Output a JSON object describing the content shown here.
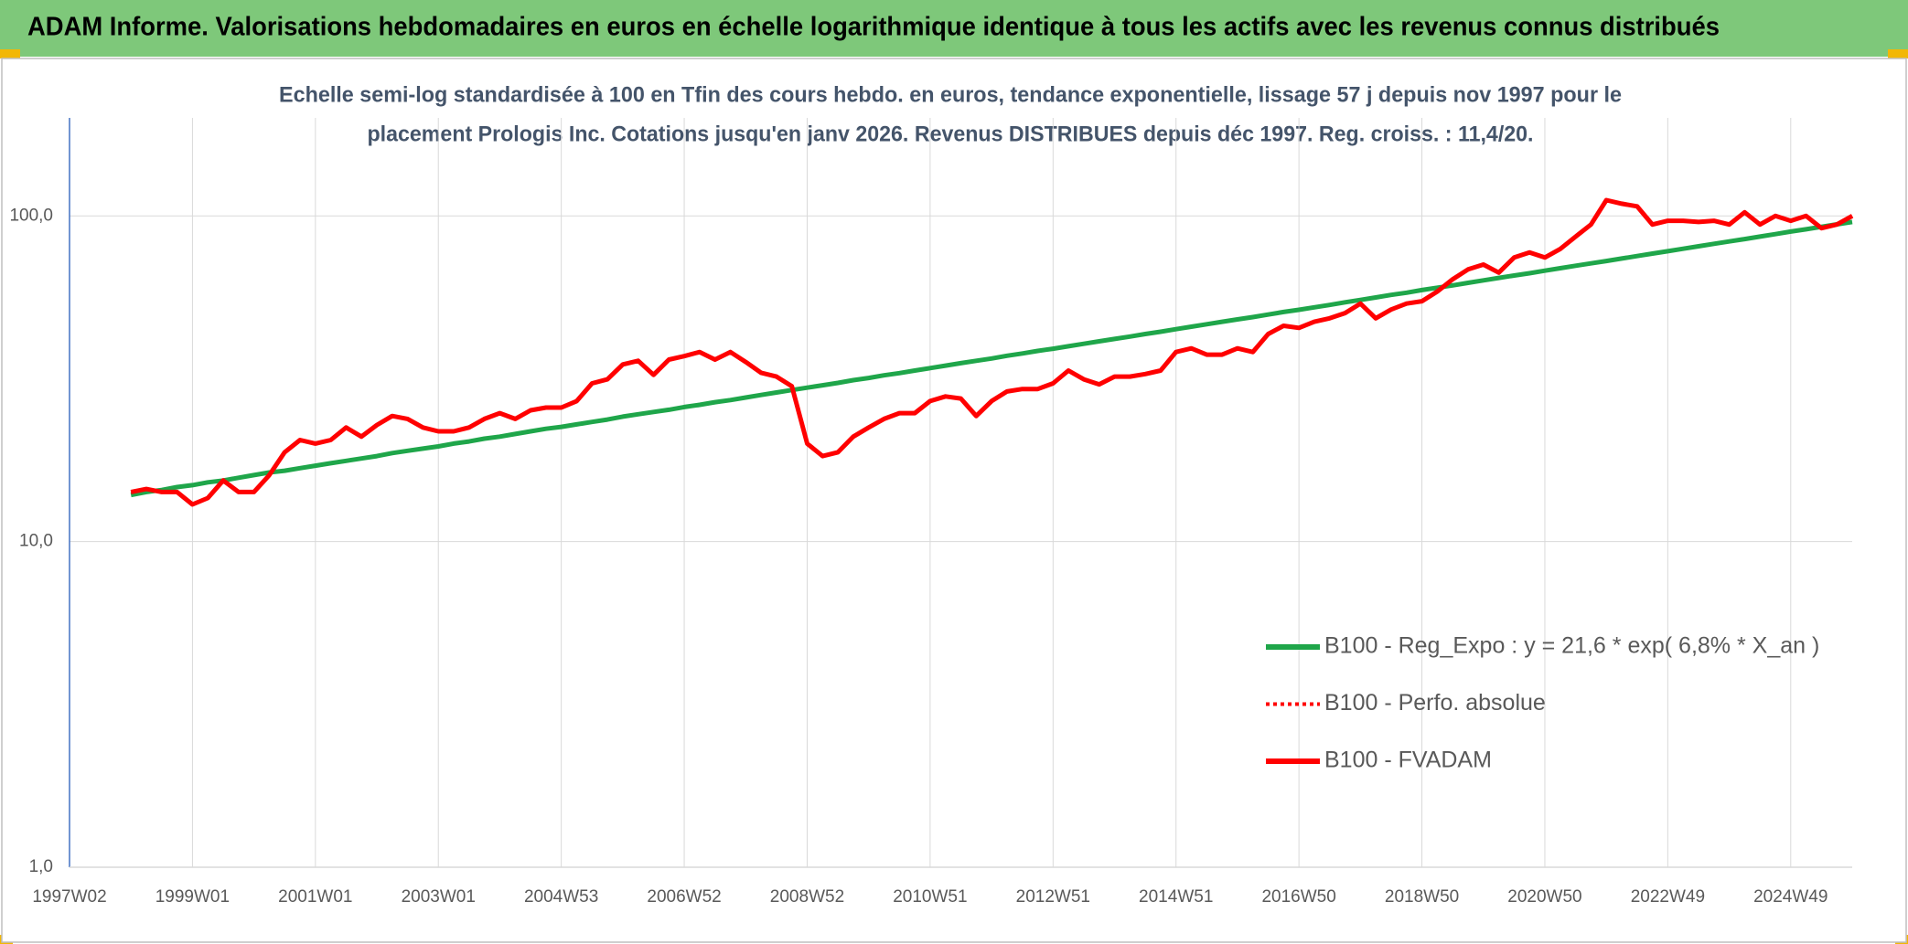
{
  "chart_data": {
    "type": "line",
    "title": "ADAM Informe. Valorisations hebdomadaires en euros en échelle logarithmique identique à tous les actifs avec les revenus connus distribués",
    "subtitle": [
      "Echelle semi-log standardisée à 100 en Tfin des cours hebdo. en euros, tendance exponentielle, lissage 57 j depuis nov 1997 pour le",
      "placement Prologis Inc. Cotations jusqu'en janv 2026. Revenus DISTRIBUES depuis déc 1997. Reg. croiss. : 11,4/20."
    ],
    "categories": [
      "1997W02",
      null,
      null,
      null,
      null,
      null,
      null,
      null,
      "1999W01",
      null,
      null,
      null,
      null,
      null,
      null,
      null,
      "2001W01",
      null,
      null,
      null,
      null,
      null,
      null,
      null,
      "2003W01",
      null,
      null,
      null,
      null,
      null,
      null,
      null,
      "2004W53",
      null,
      null,
      null,
      null,
      null,
      null,
      null,
      "2006W52",
      null,
      null,
      null,
      null,
      null,
      null,
      null,
      "2008W52",
      null,
      null,
      null,
      null,
      null,
      null,
      null,
      "2010W51",
      null,
      null,
      null,
      null,
      null,
      null,
      null,
      "2012W51",
      null,
      null,
      null,
      null,
      null,
      null,
      null,
      "2014W51",
      null,
      null,
      null,
      null,
      null,
      null,
      null,
      "2016W50",
      null,
      null,
      null,
      null,
      null,
      null,
      null,
      "2018W50",
      null,
      null,
      null,
      null,
      null,
      null,
      null,
      "2020W50",
      null,
      null,
      null,
      null,
      null,
      null,
      null,
      "2022W49",
      null,
      null,
      null,
      null,
      null,
      null,
      null,
      "2024W49",
      null,
      null,
      null,
      null
    ],
    "series": [
      {
        "name": "B100 - Reg_Expo : y = 21,6 * exp( 6,8% *  X_an )",
        "color": "#1fa64a",
        "style": "solid",
        "values": [
          null,
          null,
          null,
          null,
          13.9,
          14.2,
          14.4,
          14.7,
          14.9,
          15.2,
          15.4,
          15.7,
          16.0,
          16.3,
          16.5,
          16.8,
          17.1,
          17.4,
          17.7,
          18.0,
          18.3,
          18.7,
          19.0,
          19.3,
          19.6,
          20.0,
          20.3,
          20.7,
          21.0,
          21.4,
          21.8,
          22.2,
          22.5,
          22.9,
          23.3,
          23.7,
          24.2,
          24.6,
          25.0,
          25.4,
          25.9,
          26.3,
          26.8,
          27.2,
          27.7,
          28.2,
          28.7,
          29.2,
          29.7,
          30.2,
          30.7,
          31.3,
          31.8,
          32.4,
          32.9,
          33.5,
          34.1,
          34.7,
          35.3,
          35.9,
          36.5,
          37.2,
          37.8,
          38.5,
          39.1,
          39.8,
          40.5,
          41.2,
          41.9,
          42.6,
          43.4,
          44.1,
          44.9,
          45.7,
          46.5,
          47.3,
          48.1,
          48.9,
          49.8,
          50.7,
          51.5,
          52.4,
          53.3,
          54.3,
          55.2,
          56.2,
          57.2,
          58.1,
          59.2,
          60.2,
          61.2,
          62.3,
          63.4,
          64.5,
          65.6,
          66.7,
          67.9,
          69.1,
          70.3,
          71.5,
          72.7,
          74.0,
          75.3,
          76.6,
          77.9,
          79.3,
          80.7,
          82.1,
          83.5,
          84.9,
          86.4,
          87.9,
          89.5,
          91.0,
          92.6,
          94.2,
          95.8
        ]
      },
      {
        "name": "B100 - Perfo. absolue",
        "color": "#ff0000",
        "style": "dotted",
        "values": [
          null,
          null,
          null,
          null,
          14.2,
          14.5,
          14.2,
          14.2,
          13.0,
          13.6,
          15.4,
          14.2,
          14.2,
          16.0,
          18.8,
          20.5,
          20.0,
          20.5,
          22.4,
          21.0,
          22.8,
          24.3,
          23.8,
          22.4,
          21.8,
          21.8,
          22.4,
          23.8,
          24.8,
          23.8,
          25.3,
          25.8,
          25.8,
          27.0,
          30.6,
          31.5,
          35.0,
          35.9,
          32.5,
          36.2,
          37.1,
          38.2,
          36.2,
          38.2,
          35.6,
          33.0,
          32.1,
          30.0,
          20.0,
          18.3,
          18.8,
          21.0,
          22.4,
          23.8,
          24.8,
          24.8,
          27.0,
          27.9,
          27.5,
          24.3,
          27.0,
          28.9,
          29.4,
          29.4,
          30.6,
          33.5,
          31.5,
          30.4,
          32.1,
          32.1,
          32.7,
          33.5,
          38.2,
          39.2,
          37.5,
          37.5,
          39.2,
          38.2,
          43.4,
          46.0,
          45.3,
          47.3,
          48.5,
          50.3,
          53.8,
          48.5,
          51.6,
          53.8,
          54.7,
          58.6,
          63.9,
          68.5,
          70.9,
          67.0,
          74.5,
          77.2,
          74.5,
          79.2,
          86.4,
          94.1,
          111.8,
          109.0,
          107.0,
          94.1,
          96.6,
          96.6,
          95.8,
          96.6,
          94.1,
          102.6,
          94.1,
          100.0,
          96.6,
          100.0,
          91.7,
          94.1,
          100.0
        ]
      },
      {
        "name": "B100 - FVADAM",
        "color": "#ff0000",
        "style": "solid",
        "values": [
          null,
          null,
          null,
          null,
          14.2,
          14.5,
          14.2,
          14.2,
          13.0,
          13.6,
          15.4,
          14.2,
          14.2,
          16.0,
          18.8,
          20.5,
          20.0,
          20.5,
          22.4,
          21.0,
          22.8,
          24.3,
          23.8,
          22.4,
          21.8,
          21.8,
          22.4,
          23.8,
          24.8,
          23.8,
          25.3,
          25.8,
          25.8,
          27.0,
          30.6,
          31.5,
          35.0,
          35.9,
          32.5,
          36.2,
          37.1,
          38.2,
          36.2,
          38.2,
          35.6,
          33.0,
          32.1,
          30.0,
          20.0,
          18.3,
          18.8,
          21.0,
          22.4,
          23.8,
          24.8,
          24.8,
          27.0,
          27.9,
          27.5,
          24.3,
          27.0,
          28.9,
          29.4,
          29.4,
          30.6,
          33.5,
          31.5,
          30.4,
          32.1,
          32.1,
          32.7,
          33.5,
          38.2,
          39.2,
          37.5,
          37.5,
          39.2,
          38.2,
          43.4,
          46.0,
          45.3,
          47.3,
          48.5,
          50.3,
          53.8,
          48.5,
          51.6,
          53.8,
          54.7,
          58.6,
          63.9,
          68.5,
          70.9,
          67.0,
          74.5,
          77.2,
          74.5,
          79.2,
          86.4,
          94.1,
          111.8,
          109.0,
          107.0,
          94.1,
          96.6,
          96.6,
          95.8,
          96.6,
          94.1,
          102.6,
          94.1,
          100.0,
          96.6,
          100.0,
          91.7,
          94.1,
          100.0
        ]
      }
    ],
    "ylim": [
      1,
      200
    ],
    "yticks": [
      {
        "value": 1,
        "label": "1,0"
      },
      {
        "value": 10,
        "label": "10,0"
      },
      {
        "value": 100,
        "label": "100,0"
      }
    ],
    "log_y": true,
    "grid": true,
    "legend": "right"
  }
}
